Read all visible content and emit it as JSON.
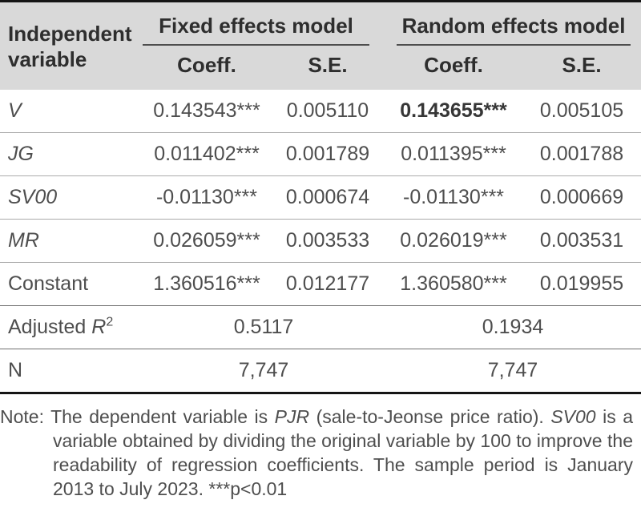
{
  "table": {
    "header": {
      "col1": "Independent variable",
      "group1": "Fixed effects model",
      "group2": "Random effects model",
      "sub": [
        "Coeff.",
        "S.E.",
        "Coeff.",
        "S.E."
      ]
    },
    "rows": [
      {
        "label": "V",
        "fe_coeff": "0.143543***",
        "fe_se": "0.005110",
        "re_coeff": "0.143655***",
        "re_se": "0.005105"
      },
      {
        "label": "JG",
        "fe_coeff": "0.011402***",
        "fe_se": "0.001789",
        "re_coeff": "0.011395***",
        "re_se": "0.001788"
      },
      {
        "label": "SV00",
        "fe_coeff": "-0.01130***",
        "fe_se": "0.000674",
        "re_coeff": "-0.01130***",
        "re_se": "0.000669"
      },
      {
        "label": "MR",
        "fe_coeff": "0.026059***",
        "fe_se": "0.003533",
        "re_coeff": "0.026019***",
        "re_se": "0.003531"
      },
      {
        "label": "Constant",
        "fe_coeff": "1.360516***",
        "fe_se": "0.012177",
        "re_coeff": "1.360580***",
        "re_se": "0.019955"
      }
    ],
    "adjusted_r2": {
      "label_text": "Adjusted ",
      "label_var": "R",
      "label_sup": "2",
      "fe": "0.5117",
      "re": "0.1934"
    },
    "n": {
      "label": "N",
      "fe": "7,747",
      "re": "7,747"
    }
  },
  "note": {
    "label": "Note:",
    "seg1": " The dependent variable is ",
    "var1": "PJR",
    "seg2": " (sale-to-Jeonse price ratio). ",
    "var2": "SV00",
    "seg3": " is a variable obtained by dividing the original variable by 100 to improve the readability of regression coefficients. The sample period is January 2013 to July 2023. ***p<0.01"
  },
  "colors": {
    "header_bg": "#d9d9d9",
    "header_text": "#2e2e2e",
    "body_text": "#4e4e4e",
    "thick_rule": "#151515",
    "row_rule_light": "#ababab",
    "row_rule_medium": "#6f6f6f"
  }
}
